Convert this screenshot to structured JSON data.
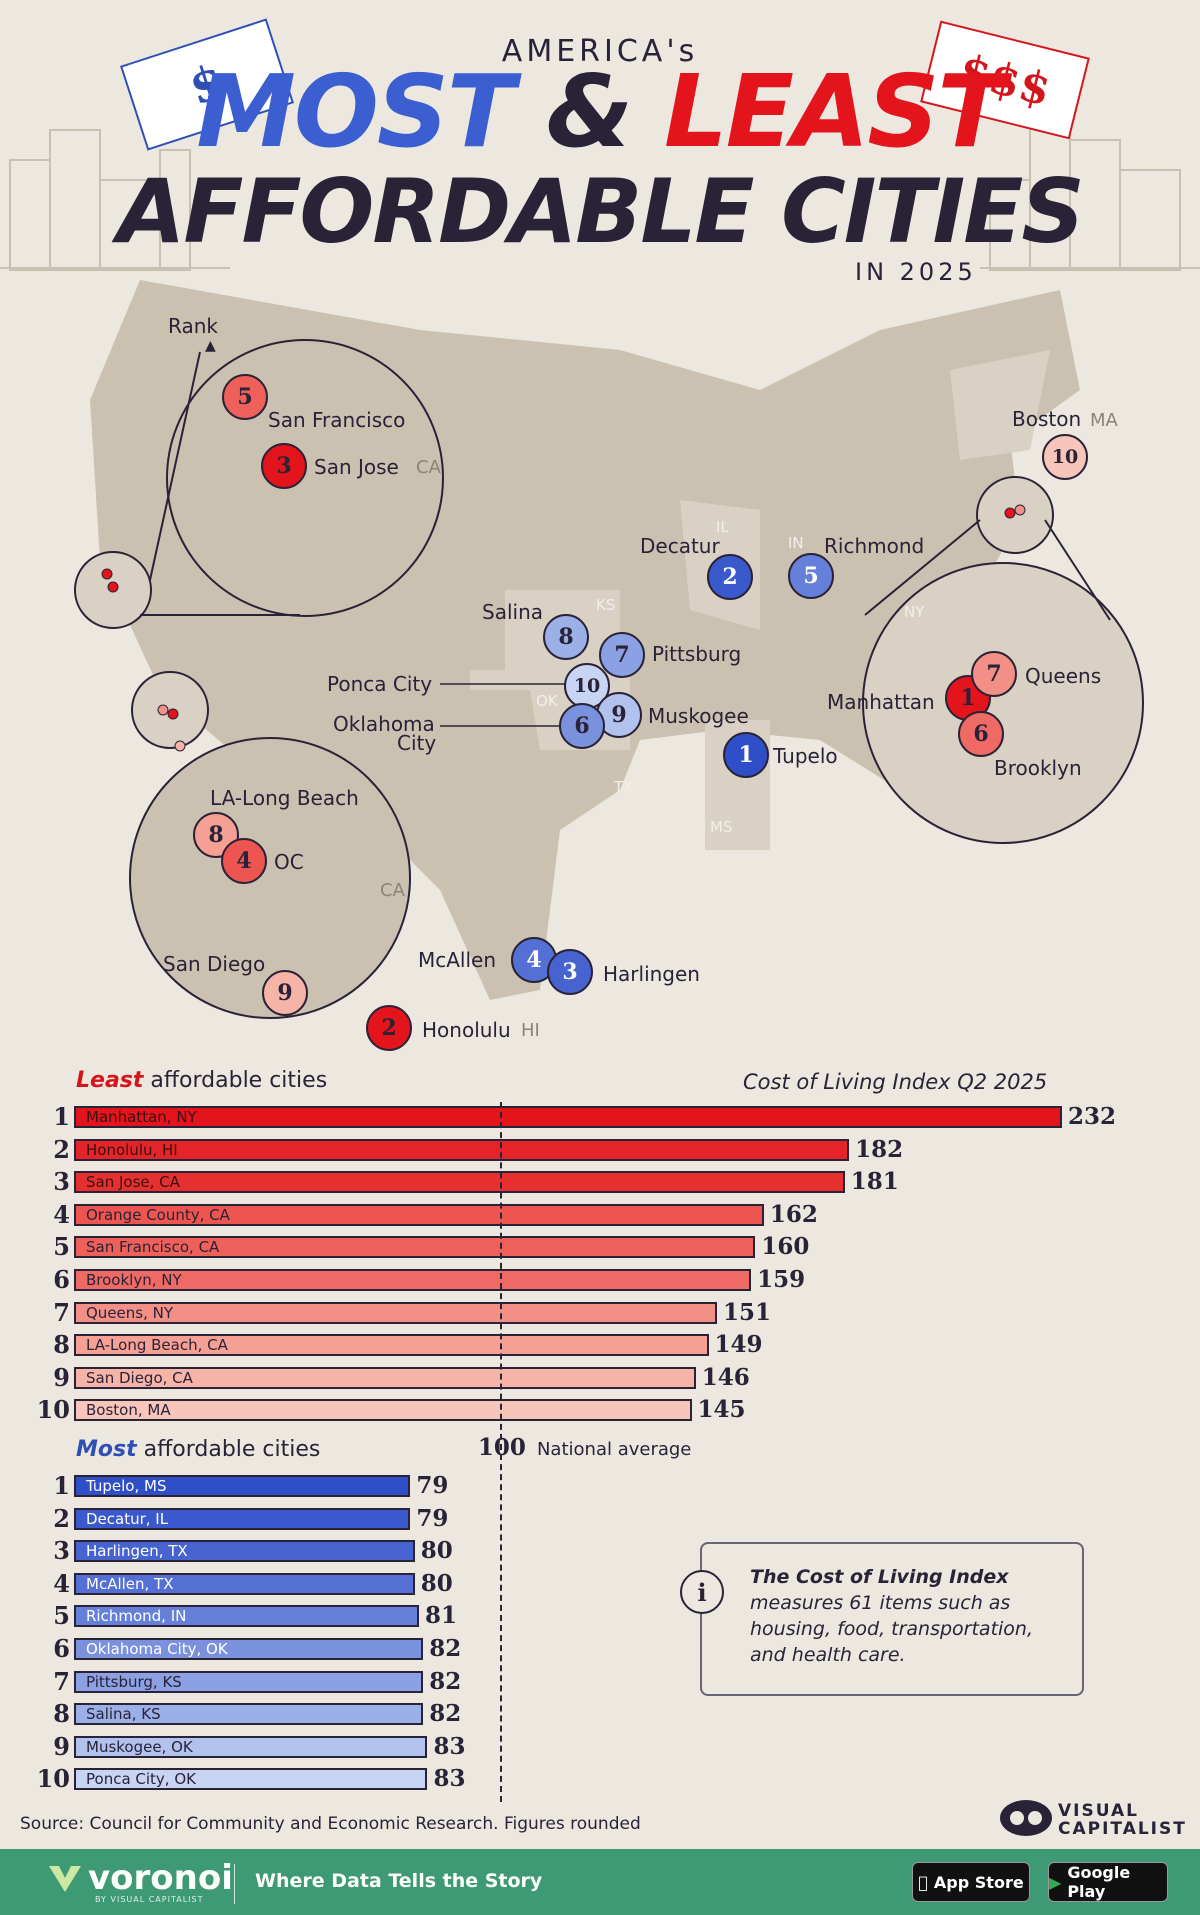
{
  "header": {
    "top_line": "AMERICA's",
    "most": "MOST",
    "amp": "&",
    "least": "LEAST",
    "subtitle": "AFFORDABLE CITIES",
    "year_line": "IN 2025",
    "tag_left": "$",
    "tag_right": "$$$"
  },
  "map": {
    "rank_hint": "Rank",
    "state_labels": [
      "IL",
      "IN",
      "KS",
      "OK",
      "TX",
      "MS",
      "NY"
    ],
    "zoom_state_labels": [
      "CA",
      "CA",
      "MA",
      "HI",
      "NY"
    ],
    "cities": [
      {
        "name": "San Francisco",
        "rank": "5",
        "group": "least"
      },
      {
        "name": "San Jose",
        "rank": "3",
        "group": "least"
      },
      {
        "name": "Boston",
        "rank": "10",
        "group": "least"
      },
      {
        "name": "Decatur",
        "rank": "2",
        "group": "most"
      },
      {
        "name": "Richmond",
        "rank": "5",
        "group": "most"
      },
      {
        "name": "Salina",
        "rank": "8",
        "group": "most"
      },
      {
        "name": "Pittsburg",
        "rank": "7",
        "group": "most"
      },
      {
        "name": "Ponca City",
        "rank": "10",
        "group": "most"
      },
      {
        "name": "Muskogee",
        "rank": "9",
        "group": "most"
      },
      {
        "name": "Oklahoma City",
        "rank": "6",
        "group": "most"
      },
      {
        "name": "Tupelo",
        "rank": "1",
        "group": "most"
      },
      {
        "name": "Manhattan",
        "rank": "1",
        "group": "least"
      },
      {
        "name": "Queens",
        "rank": "7",
        "group": "least"
      },
      {
        "name": "Brooklyn",
        "rank": "6",
        "group": "least"
      },
      {
        "name": "LA-Long Beach",
        "rank": "8",
        "group": "least"
      },
      {
        "name": "OC",
        "rank": "4",
        "group": "least"
      },
      {
        "name": "San Diego",
        "rank": "9",
        "group": "least"
      },
      {
        "name": "McAllen",
        "rank": "4",
        "group": "most"
      },
      {
        "name": "Harlingen",
        "rank": "3",
        "group": "most"
      },
      {
        "name": "Honolulu",
        "rank": "2",
        "group": "least"
      }
    ],
    "oklahoma_city_line2": "City",
    "oklahoma_city_line1": "Oklahoma"
  },
  "chart_data": [
    {
      "type": "bar",
      "title": "Least affordable cities",
      "title_emphasis": "Least",
      "title_rest": " affordable cities",
      "ylabel": "Cost of Living Index Q2 2025",
      "ranks": [
        "1",
        "2",
        "3",
        "4",
        "5",
        "6",
        "7",
        "8",
        "9",
        "10"
      ],
      "categories": [
        "Manhattan, NY",
        "Honolulu, HI",
        "San Jose, CA",
        "Orange County, CA",
        "San Francisco, CA",
        "Brooklyn, NY",
        "Queens, NY",
        "LA-Long Beach, CA",
        "San Diego, CA",
        "Boston, MA"
      ],
      "values": [
        232,
        182,
        181,
        162,
        160,
        159,
        151,
        149,
        146,
        145
      ],
      "colors": [
        "#e3141c",
        "#e5242a",
        "#e6302f",
        "#ec5550",
        "#ee605a",
        "#ef6a64",
        "#f29088",
        "#f4a095",
        "#f6b3a8",
        "#f8c5bb"
      ],
      "xlim": [
        0,
        232
      ]
    },
    {
      "type": "bar",
      "title": "Most affordable cities",
      "title_emphasis": "Most",
      "title_rest": " affordable cities",
      "ranks": [
        "1",
        "2",
        "3",
        "4",
        "5",
        "6",
        "7",
        "8",
        "9",
        "10"
      ],
      "categories": [
        "Tupelo, MS",
        "Decatur, IL",
        "Harlingen, TX",
        "McAllen, TX",
        "Richmond, IN",
        "Oklahoma City, OK",
        "Pittsburg, KS",
        "Salina, KS",
        "Muskogee, OK",
        "Ponca City, OK"
      ],
      "values": [
        79,
        79,
        80,
        80,
        81,
        82,
        82,
        82,
        83,
        83
      ],
      "colors": [
        "#2f4fc8",
        "#3a59cc",
        "#4663d0",
        "#5570d4",
        "#6580d8",
        "#7a92de",
        "#8ba1e3",
        "#9cb0e8",
        "#b1c2ee",
        "#c7d4f3"
      ],
      "xlim": [
        0,
        232
      ]
    }
  ],
  "reference_line": {
    "value": "100",
    "label": "National average"
  },
  "info": {
    "icon": "i",
    "title": "The Cost of Living Index",
    "body": "measures 61 items such as housing, food, transportation, and health care."
  },
  "source": "Source: Council for Community and Economic Research. Figures rounded",
  "branding": {
    "visual": "VISUAL",
    "capitalist": "CAPITALIST",
    "voronoi": "voronoi",
    "voronoi_sub": "BY VISUAL CAPITALIST",
    "tagline": "Where Data Tells the Story",
    "app_store": "App Store",
    "google_play": "Google Play"
  }
}
